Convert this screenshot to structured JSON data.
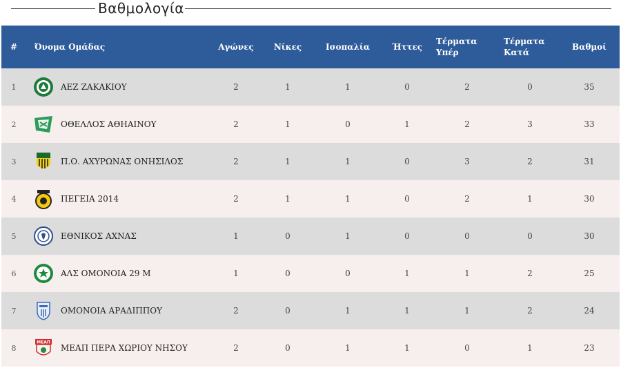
{
  "title": "Βαθμολογία",
  "colors": {
    "header_bg": "#2e5c9a",
    "row_odd": "#dcdcdc",
    "row_even": "#f7eeee"
  },
  "headers": {
    "pos": "#",
    "team": "Όνομα Ομάδας",
    "matches": "Αγώνες",
    "wins": "Νίκες",
    "draws": "Ισοπαλία",
    "losses": "Ήττες",
    "gf_line1": "Τέρματα",
    "gf_line2": "Υπέρ",
    "ga_line1": "Τέρματα",
    "ga_line2": "Κατά",
    "points": "Βαθμοί"
  },
  "rows": [
    {
      "pos": "1",
      "team": "ΑΕΖ ΖΑΚΑΚΙΟΥ",
      "logo": "aez-logo",
      "matches": "2",
      "wins": "1",
      "draws": "1",
      "losses": "0",
      "gf": "2",
      "ga": "0",
      "points": "35"
    },
    {
      "pos": "2",
      "team": "ΟΘΕΛΛΟΣ ΑΘΗΑΙΝΟΥ",
      "logo": "othellos-logo",
      "matches": "2",
      "wins": "1",
      "draws": "0",
      "losses": "1",
      "gf": "2",
      "ga": "3",
      "points": "33"
    },
    {
      "pos": "3",
      "team": "Π.Ο. ΑΧΥΡΩΝΑΣ ΟΝΗΣΙΛΟΣ",
      "logo": "achyronas-logo",
      "matches": "2",
      "wins": "1",
      "draws": "1",
      "losses": "0",
      "gf": "3",
      "ga": "2",
      "points": "31"
    },
    {
      "pos": "4",
      "team": "ΠΕΓΕΙΑ 2014",
      "logo": "pegeia-logo",
      "matches": "2",
      "wins": "1",
      "draws": "1",
      "losses": "0",
      "gf": "2",
      "ga": "1",
      "points": "30"
    },
    {
      "pos": "5",
      "team": "ΕΘΝΙΚΟΣ ΑΧΝΑΣ",
      "logo": "ethnikos-logo",
      "matches": "1",
      "wins": "0",
      "draws": "1",
      "losses": "0",
      "gf": "0",
      "ga": "0",
      "points": "30"
    },
    {
      "pos": "6",
      "team": "ΑΛΣ ΟΜΟΝΟΙΑ 29 Μ",
      "logo": "omonoia29-logo",
      "matches": "1",
      "wins": "0",
      "draws": "0",
      "losses": "1",
      "gf": "1",
      "ga": "2",
      "points": "25"
    },
    {
      "pos": "7",
      "team": "ΟΜΟΝΟΙΑ ΑΡΑΔΙΠΠΟΥ",
      "logo": "omonoia-aradippou-logo",
      "matches": "2",
      "wins": "0",
      "draws": "1",
      "losses": "1",
      "gf": "1",
      "ga": "2",
      "points": "24"
    },
    {
      "pos": "8",
      "team": "ΜΕΑΠ ΠΕΡΑ ΧΩΡΙΟΥ ΝΗΣΟΥ",
      "logo": "meap-logo",
      "logo_text": "ΜΕΑΠ",
      "matches": "2",
      "wins": "0",
      "draws": "1",
      "losses": "1",
      "gf": "0",
      "ga": "1",
      "points": "23"
    }
  ]
}
